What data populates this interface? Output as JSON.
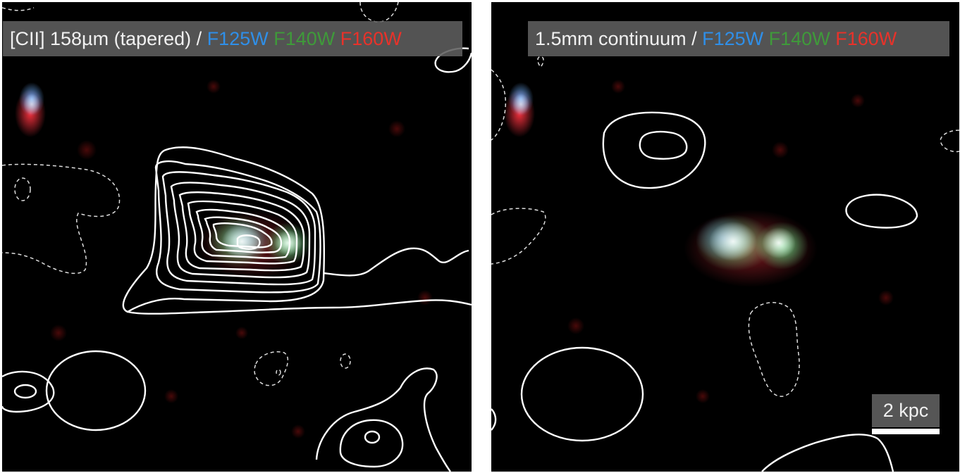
{
  "panels": {
    "left": {
      "title": "[CII] 158µm (tapered)",
      "separator": " / ",
      "filters": [
        "F125W",
        "F140W",
        "F160W"
      ]
    },
    "right": {
      "title": "1.5mm continuum",
      "separator": " / ",
      "filters": [
        "F125W",
        "F140W",
        "F160W"
      ],
      "scale_bar": "2 kpc"
    }
  },
  "colors": {
    "F125W": "#2f8fe8",
    "F140W": "#3f9a3a",
    "F160W": "#e8322a",
    "contour": "#ffffff"
  }
}
